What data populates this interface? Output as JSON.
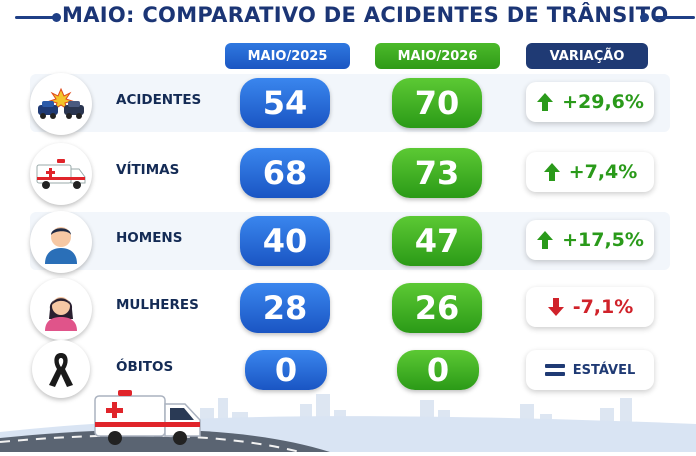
{
  "title": "MAIO: COMPARATIVO DE ACIDENTES DE TRÂNSITO",
  "columns": {
    "col1": "MAIO/2025",
    "col2": "MAIO/2026",
    "col3": "VARIAÇÃO"
  },
  "rows": [
    {
      "label": "ACIDENTES",
      "v2025": "54",
      "v2026": "70",
      "variation": "+29,6%",
      "trend": "up",
      "icon": "car-crash-icon"
    },
    {
      "label": "VÍTIMAS",
      "v2025": "68",
      "v2026": "73",
      "variation": "+7,4%",
      "trend": "up",
      "icon": "ambulance-icon"
    },
    {
      "label": "HOMENS",
      "v2025": "40",
      "v2026": "47",
      "variation": "+17,5%",
      "trend": "up",
      "icon": "man-avatar-icon"
    },
    {
      "label": "MULHERES",
      "v2025": "28",
      "v2026": "26",
      "variation": "-7,1%",
      "trend": "down",
      "icon": "woman-avatar-icon"
    },
    {
      "label": "ÓBITOS",
      "v2025": "0",
      "v2026": "0",
      "variation": "ESTÁVEL",
      "trend": "stable",
      "icon": "mourning-ribbon-icon"
    }
  ],
  "colors": {
    "blue": "#1b56c2",
    "green": "#2f9a18",
    "navy": "#1f3a74",
    "up": "#2a9a1a",
    "down": "#d0222a",
    "title": "#1b3575"
  }
}
